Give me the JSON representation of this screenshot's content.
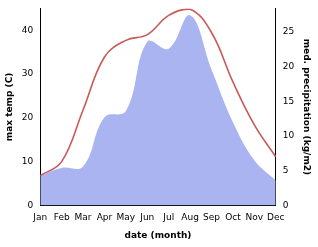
{
  "chart_data": {
    "type": "line",
    "x_label": "date (month)",
    "y_label": "max temp (C)",
    "y2_label": "med. precipitation (kg/m2)",
    "categories": [
      "Jan",
      "Feb",
      "Mar",
      "Apr",
      "May",
      "Jun",
      "Jul",
      "Aug",
      "Sep",
      "Oct",
      "Nov",
      "Dec"
    ],
    "series": [
      {
        "name": "med. precipitation",
        "type": "area",
        "axis": "y2",
        "color": "#aab4f0",
        "values": [
          4.3,
          5.4,
          5.6,
          12.7,
          13.6,
          23.6,
          22.6,
          27.4,
          19.6,
          12.0,
          6.5,
          3.6
        ]
      },
      {
        "name": "max temp",
        "type": "line",
        "color": "#c85a5a",
        "values": [
          6.8,
          10.0,
          21.8,
          33.9,
          37.7,
          39.0,
          43.4,
          44.8,
          39.5,
          28.2,
          18.4,
          11.1
        ]
      }
    ],
    "ylim": [
      0,
      45
    ],
    "yticks": [
      0,
      10,
      20,
      30,
      40
    ],
    "y2lim": [
      0,
      28.4
    ],
    "y2ticks": [
      0,
      5,
      10,
      15,
      20,
      25
    ],
    "grid": false
  }
}
